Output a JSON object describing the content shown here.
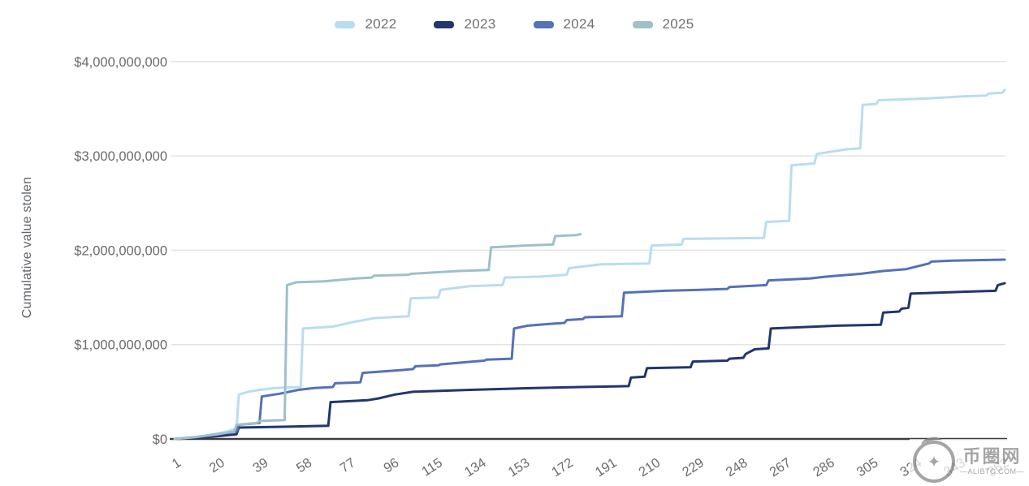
{
  "legend": {
    "items": [
      {
        "label": "2022",
        "color": "#b9ddf0"
      },
      {
        "label": "2023",
        "color": "#21366e"
      },
      {
        "label": "2024",
        "color": "#5571b7"
      },
      {
        "label": "2025",
        "color": "#9dc0c9"
      }
    ]
  },
  "y_axis": {
    "title": "Cumulative value stolen"
  },
  "watermark": {
    "site_name": "币圈网",
    "domain": "—ALIBTC.COM—",
    "logo": "dragon-circle-star"
  },
  "chart_data": {
    "type": "line",
    "title": "",
    "xlabel": "",
    "ylabel": "Cumulative value stolen",
    "x_unit": "day of year",
    "value_unit": "USD (labels shown in dollars, series values in billions)",
    "xlim": [
      1,
      366
    ],
    "ylim_billions": [
      0,
      4
    ],
    "grid": "horizontal",
    "legend_position": "top-center",
    "x_ticks": [
      1,
      20,
      39,
      58,
      77,
      96,
      115,
      134,
      153,
      172,
      191,
      210,
      229,
      248,
      267,
      286,
      305,
      324,
      343,
      362
    ],
    "y_ticks_billions": [
      0,
      1,
      2,
      3,
      4
    ],
    "y_tick_labels": [
      "$0",
      "$1,000,000,000",
      "$2,000,000,000",
      "$3,000,000,000",
      "$4,000,000,000"
    ],
    "series": [
      {
        "name": "2022",
        "color": "#b9ddf0",
        "points": [
          [
            1,
            0.0
          ],
          [
            8,
            0.01
          ],
          [
            14,
            0.03
          ],
          [
            20,
            0.06
          ],
          [
            24,
            0.08
          ],
          [
            28,
            0.11
          ],
          [
            29,
            0.47
          ],
          [
            33,
            0.5
          ],
          [
            38,
            0.52
          ],
          [
            45,
            0.54
          ],
          [
            56,
            0.55
          ],
          [
            57,
            1.17
          ],
          [
            70,
            1.19
          ],
          [
            79,
            1.24
          ],
          [
            88,
            1.28
          ],
          [
            103,
            1.3
          ],
          [
            104,
            1.49
          ],
          [
            116,
            1.5
          ],
          [
            117,
            1.58
          ],
          [
            130,
            1.62
          ],
          [
            144,
            1.63
          ],
          [
            145,
            1.71
          ],
          [
            160,
            1.72
          ],
          [
            172,
            1.74
          ],
          [
            173,
            1.81
          ],
          [
            187,
            1.85
          ],
          [
            208,
            1.86
          ],
          [
            209,
            2.05
          ],
          [
            222,
            2.06
          ],
          [
            223,
            2.12
          ],
          [
            258,
            2.13
          ],
          [
            259,
            2.3
          ],
          [
            269,
            2.31
          ],
          [
            270,
            2.9
          ],
          [
            280,
            2.92
          ],
          [
            281,
            3.02
          ],
          [
            294,
            3.07
          ],
          [
            300,
            3.08
          ],
          [
            301,
            3.54
          ],
          [
            307,
            3.55
          ],
          [
            308,
            3.59
          ],
          [
            330,
            3.61
          ],
          [
            345,
            3.63
          ],
          [
            355,
            3.64
          ],
          [
            356,
            3.66
          ],
          [
            362,
            3.67
          ],
          [
            363,
            3.7
          ]
        ]
      },
      {
        "name": "2023",
        "color": "#21366e",
        "points": [
          [
            1,
            0.0
          ],
          [
            10,
            0.01
          ],
          [
            20,
            0.03
          ],
          [
            28,
            0.05
          ],
          [
            29,
            0.12
          ],
          [
            50,
            0.13
          ],
          [
            68,
            0.14
          ],
          [
            69,
            0.39
          ],
          [
            85,
            0.41
          ],
          [
            90,
            0.43
          ],
          [
            97,
            0.47
          ],
          [
            105,
            0.5
          ],
          [
            130,
            0.52
          ],
          [
            158,
            0.54
          ],
          [
            178,
            0.55
          ],
          [
            199,
            0.56
          ],
          [
            200,
            0.65
          ],
          [
            206,
            0.66
          ],
          [
            207,
            0.75
          ],
          [
            226,
            0.76
          ],
          [
            227,
            0.82
          ],
          [
            242,
            0.83
          ],
          [
            243,
            0.85
          ],
          [
            249,
            0.86
          ],
          [
            250,
            0.9
          ],
          [
            254,
            0.95
          ],
          [
            260,
            0.96
          ],
          [
            261,
            1.17
          ],
          [
            290,
            1.2
          ],
          [
            309,
            1.21
          ],
          [
            310,
            1.34
          ],
          [
            317,
            1.35
          ],
          [
            318,
            1.38
          ],
          [
            321,
            1.39
          ],
          [
            322,
            1.54
          ],
          [
            345,
            1.56
          ],
          [
            359,
            1.57
          ],
          [
            360,
            1.63
          ],
          [
            363,
            1.65
          ]
        ]
      },
      {
        "name": "2024",
        "color": "#5571b7",
        "points": [
          [
            1,
            0.0
          ],
          [
            10,
            0.02
          ],
          [
            20,
            0.05
          ],
          [
            28,
            0.08
          ],
          [
            29,
            0.15
          ],
          [
            38,
            0.17
          ],
          [
            39,
            0.45
          ],
          [
            47,
            0.48
          ],
          [
            55,
            0.52
          ],
          [
            62,
            0.54
          ],
          [
            70,
            0.55
          ],
          [
            71,
            0.59
          ],
          [
            82,
            0.6
          ],
          [
            83,
            0.7
          ],
          [
            100,
            0.73
          ],
          [
            105,
            0.74
          ],
          [
            106,
            0.77
          ],
          [
            116,
            0.78
          ],
          [
            117,
            0.79
          ],
          [
            131,
            0.82
          ],
          [
            136,
            0.83
          ],
          [
            137,
            0.84
          ],
          [
            148,
            0.85
          ],
          [
            149,
            1.17
          ],
          [
            155,
            1.2
          ],
          [
            165,
            1.22
          ],
          [
            171,
            1.23
          ],
          [
            172,
            1.26
          ],
          [
            179,
            1.27
          ],
          [
            180,
            1.29
          ],
          [
            196,
            1.3
          ],
          [
            197,
            1.55
          ],
          [
            215,
            1.57
          ],
          [
            230,
            1.58
          ],
          [
            242,
            1.59
          ],
          [
            243,
            1.61
          ],
          [
            259,
            1.63
          ],
          [
            260,
            1.68
          ],
          [
            278,
            1.7
          ],
          [
            285,
            1.72
          ],
          [
            300,
            1.75
          ],
          [
            310,
            1.78
          ],
          [
            320,
            1.8
          ],
          [
            330,
            1.86
          ],
          [
            331,
            1.88
          ],
          [
            340,
            1.89
          ],
          [
            363,
            1.9
          ]
        ]
      },
      {
        "name": "2025",
        "color": "#9dc0c9",
        "points": [
          [
            1,
            0.0
          ],
          [
            10,
            0.02
          ],
          [
            20,
            0.05
          ],
          [
            27,
            0.08
          ],
          [
            28,
            0.15
          ],
          [
            37,
            0.17
          ],
          [
            38,
            0.19
          ],
          [
            49,
            0.2
          ],
          [
            50,
            1.63
          ],
          [
            54,
            1.66
          ],
          [
            66,
            1.67
          ],
          [
            80,
            1.7
          ],
          [
            87,
            1.71
          ],
          [
            88,
            1.73
          ],
          [
            103,
            1.74
          ],
          [
            104,
            1.75
          ],
          [
            125,
            1.78
          ],
          [
            138,
            1.79
          ],
          [
            139,
            2.03
          ],
          [
            154,
            2.05
          ],
          [
            166,
            2.06
          ],
          [
            167,
            2.15
          ],
          [
            176,
            2.16
          ],
          [
            178,
            2.17
          ]
        ]
      }
    ]
  }
}
